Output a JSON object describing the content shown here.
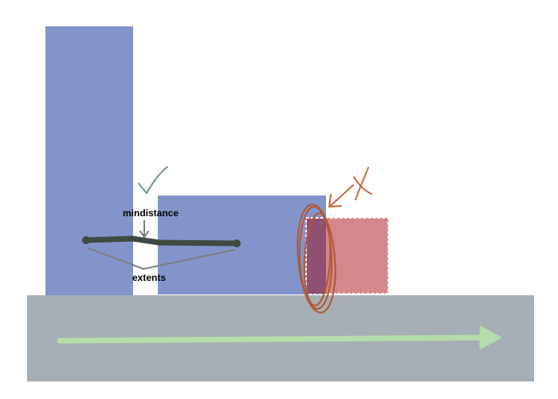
{
  "labels": {
    "mindistance": "mindistance",
    "extents": "extents"
  },
  "colors": {
    "background": "#ffffff",
    "block_blue": "#8394cb",
    "ground": "#a6afb5",
    "ghost_block": "#d4878a",
    "overlap": "#8f5072",
    "ghost_border": "#ffffff",
    "arrow_green": "#b5dcaa",
    "check_green": "#6d9b8a",
    "cross_orange": "#c76a38",
    "scribble_brown": "#b05a32",
    "extents_stroke": "#3f4a40",
    "annotation_gray": "#7d7d7d"
  },
  "icons": {
    "valid_mark": "checkmark-icon",
    "invalid_mark": "cross-icon"
  }
}
